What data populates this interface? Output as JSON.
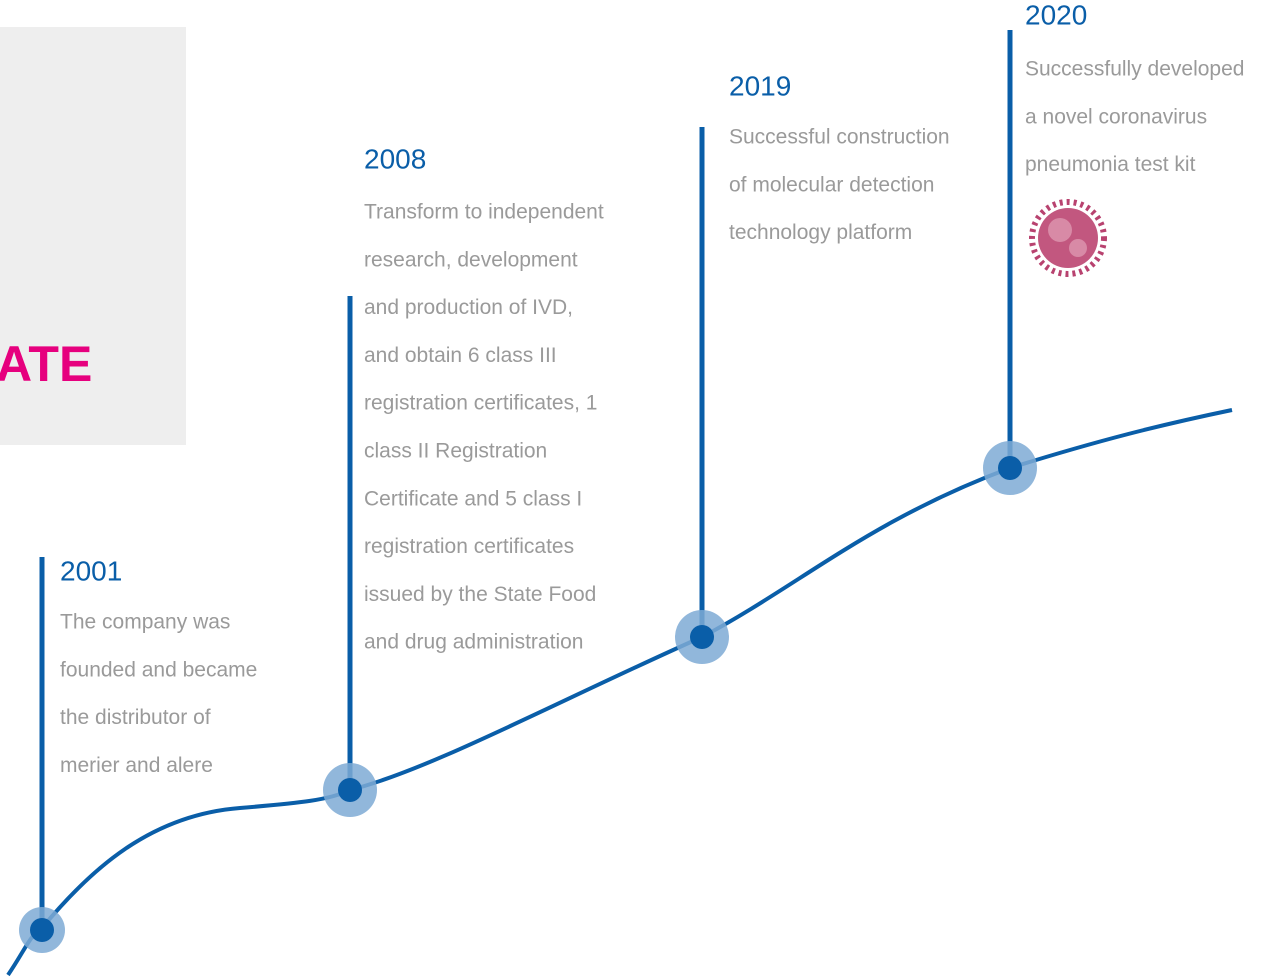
{
  "sidebar": {
    "title": "ATE"
  },
  "timeline": [
    {
      "year": "2001",
      "lines": [
        "The company was",
        "founded and became",
        "the distributor of",
        "merier and alere"
      ]
    },
    {
      "year": "2008",
      "lines": [
        "Transform to independent",
        "research, development",
        "and production of IVD,",
        "and obtain 6 class III",
        "registration certificates, 1",
        "class II Registration",
        "Certificate and 5 class I",
        "registration certificates",
        "issued by the State Food",
        "and drug administration"
      ]
    },
    {
      "year": "2019",
      "lines": [
        "Successful construction",
        "of molecular detection",
        "technology platform"
      ]
    },
    {
      "year": "2020",
      "lines": [
        "Successfully developed",
        "a novel coronavirus",
        "pneumonia test kit"
      ]
    }
  ]
}
